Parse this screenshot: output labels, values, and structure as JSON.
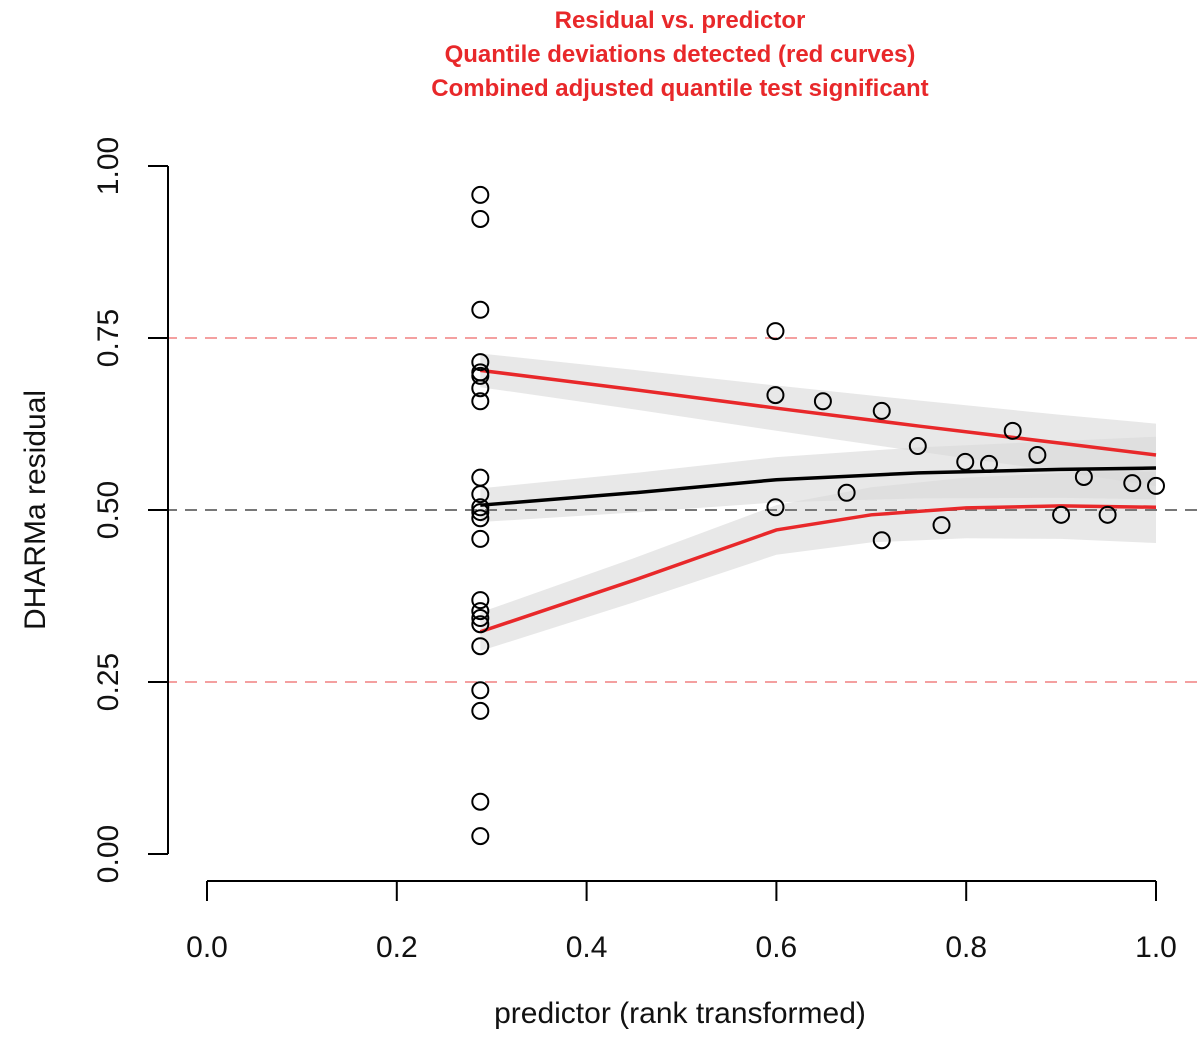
{
  "chart_data": {
    "type": "scatter",
    "title_lines": [
      "Residual vs. predictor",
      "Quantile deviations detected (red curves)",
      "Combined adjusted quantile test significant"
    ],
    "title_color": "#e8282a",
    "xlabel": "predictor (rank transformed)",
    "ylabel": "DHARMa residual",
    "xlim": [
      0,
      1
    ],
    "ylim": [
      0,
      1
    ],
    "xticks": [
      "0.0",
      "0.2",
      "0.4",
      "0.6",
      "0.8",
      "1.0"
    ],
    "yticks": [
      "0.00",
      "0.25",
      "0.50",
      "0.75",
      "1.00"
    ],
    "hlines": [
      {
        "y": 0.25,
        "color": "#f4a0a0",
        "style": "dashed"
      },
      {
        "y": 0.5,
        "color": "#777777",
        "style": "dashed"
      },
      {
        "y": 0.75,
        "color": "#f4a0a0",
        "style": "dashed"
      }
    ],
    "points": [
      [
        0.288,
        0.958
      ],
      [
        0.288,
        0.923
      ],
      [
        0.288,
        0.791
      ],
      [
        0.288,
        0.715
      ],
      [
        0.288,
        0.7
      ],
      [
        0.288,
        0.695
      ],
      [
        0.288,
        0.677
      ],
      [
        0.288,
        0.658
      ],
      [
        0.288,
        0.547
      ],
      [
        0.288,
        0.523
      ],
      [
        0.288,
        0.504
      ],
      [
        0.288,
        0.497
      ],
      [
        0.288,
        0.488
      ],
      [
        0.288,
        0.458
      ],
      [
        0.288,
        0.369
      ],
      [
        0.288,
        0.353
      ],
      [
        0.288,
        0.343
      ],
      [
        0.288,
        0.334
      ],
      [
        0.288,
        0.302
      ],
      [
        0.288,
        0.238
      ],
      [
        0.288,
        0.208
      ],
      [
        0.288,
        0.076
      ],
      [
        0.288,
        0.026
      ],
      [
        0.599,
        0.76
      ],
      [
        0.599,
        0.667
      ],
      [
        0.599,
        0.504
      ],
      [
        0.649,
        0.658
      ],
      [
        0.674,
        0.525
      ],
      [
        0.711,
        0.644
      ],
      [
        0.711,
        0.456
      ],
      [
        0.749,
        0.593
      ],
      [
        0.774,
        0.478
      ],
      [
        0.799,
        0.57
      ],
      [
        0.824,
        0.567
      ],
      [
        0.849,
        0.615
      ],
      [
        0.875,
        0.58
      ],
      [
        0.9,
        0.493
      ],
      [
        0.924,
        0.548
      ],
      [
        0.949,
        0.493
      ],
      [
        0.975,
        0.539
      ],
      [
        1.0,
        0.535
      ]
    ],
    "quantile_curves": [
      {
        "quantile": 0.75,
        "color": "#e8282a",
        "x": [
          0.288,
          0.45,
          0.6,
          0.75,
          0.9,
          1.0
        ],
        "y": [
          0.703,
          0.675,
          0.648,
          0.622,
          0.597,
          0.58
        ],
        "band": 0.035
      },
      {
        "quantile": 0.5,
        "color": "#000000",
        "x": [
          0.288,
          0.45,
          0.6,
          0.75,
          0.9,
          1.0
        ],
        "y": [
          0.507,
          0.525,
          0.544,
          0.554,
          0.559,
          0.561
        ],
        "band": 0.035
      },
      {
        "quantile": 0.25,
        "color": "#e8282a",
        "x": [
          0.288,
          0.45,
          0.6,
          0.7,
          0.8,
          0.9,
          1.0
        ],
        "y": [
          0.323,
          0.398,
          0.471,
          0.493,
          0.503,
          0.506,
          0.504
        ],
        "band": 0.04
      }
    ],
    "grid": false
  }
}
